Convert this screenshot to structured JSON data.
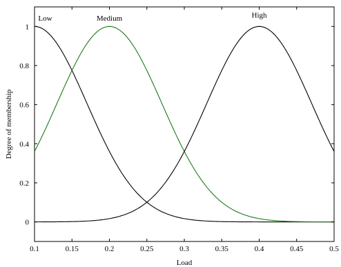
{
  "chart_data": {
    "type": "line",
    "xlabel": "Load",
    "ylabel": "Degree of membership",
    "xlim": [
      0.1,
      0.5
    ],
    "ylim": [
      -0.1,
      1.1
    ],
    "xticks": [
      "0.1",
      "0.15",
      "0.2",
      "0.25",
      "0.3",
      "0.35",
      "0.4",
      "0.45",
      "0.5"
    ],
    "yticks": [
      "0",
      "0.2",
      "0.4",
      "0.6",
      "0.8",
      "1"
    ],
    "grid": false,
    "series": [
      {
        "name": "Low",
        "kind": "gaussian",
        "mean": 0.1,
        "sigma": 0.07,
        "color": "#000000",
        "label_x": 0.105,
        "label_y": 1.03
      },
      {
        "name": "Medium",
        "kind": "gaussian",
        "mean": 0.2,
        "sigma": 0.07,
        "color": "#1a7a1a",
        "label_x": 0.2,
        "label_y": 1.03
      },
      {
        "name": "High",
        "kind": "gaussian",
        "mean": 0.4,
        "sigma": 0.07,
        "color": "#000000",
        "label_x": 0.4,
        "label_y": 1.045
      }
    ]
  }
}
